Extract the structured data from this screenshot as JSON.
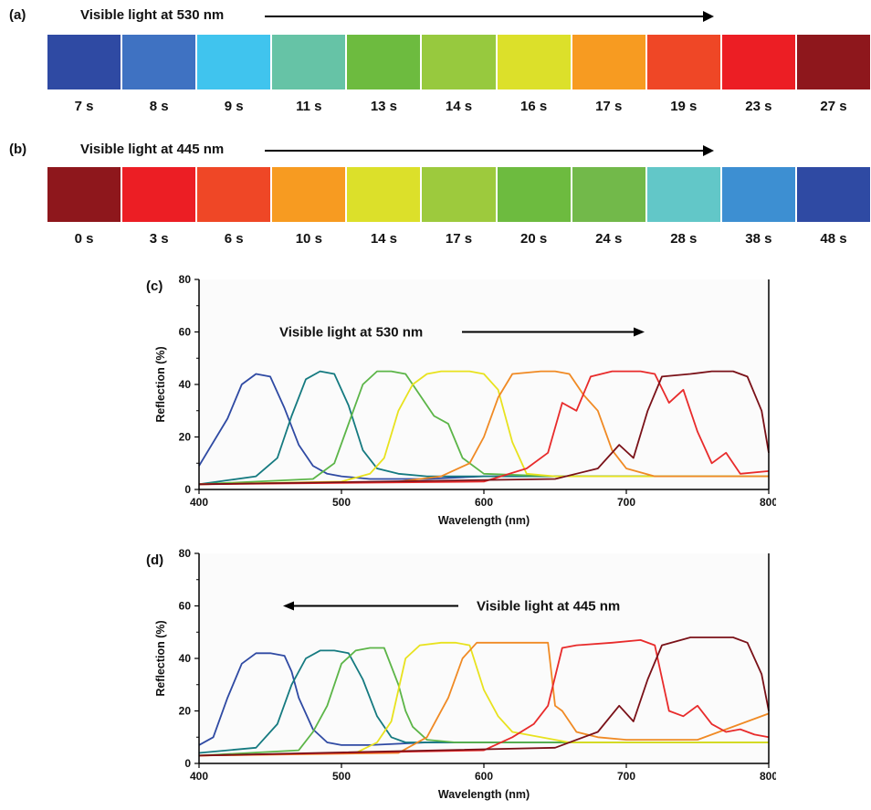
{
  "panels": {
    "a": {
      "label": "(a)",
      "title": "Visible light at 530 nm",
      "swatches": [
        "#2f4aa3",
        "#3f72c2",
        "#40c4ee",
        "#66c3a6",
        "#6dbb3f",
        "#97c93e",
        "#dce02a",
        "#f79b21",
        "#ef4726",
        "#ec1e24",
        "#8e171c"
      ],
      "times": [
        "7 s",
        "8 s",
        "9 s",
        "11 s",
        "13 s",
        "14 s",
        "16 s",
        "17 s",
        "19 s",
        "23 s",
        "27 s"
      ]
    },
    "b": {
      "label": "(b)",
      "title": "Visible light at 445 nm",
      "swatches": [
        "#8e171c",
        "#ec1e24",
        "#ef4726",
        "#f79b21",
        "#dce02a",
        "#9dca3d",
        "#6dbb3f",
        "#72b94a",
        "#62c7c8",
        "#3d8fd2",
        "#2f4aa3"
      ],
      "times": [
        "0 s",
        "3 s",
        "6 s",
        "10 s",
        "14 s",
        "17 s",
        "20 s",
        "24 s",
        "28 s",
        "38 s",
        "48 s"
      ]
    }
  },
  "chart_data": [
    {
      "panel_label": "(c)",
      "type": "line",
      "title": "",
      "annotation": "Visible light at 530 nm",
      "xlabel": "Wavelength (nm)",
      "ylabel": "Reflection (%)",
      "xlim": [
        400,
        800
      ],
      "ylim": [
        0,
        80
      ],
      "xticks": [
        400,
        500,
        600,
        700,
        800
      ],
      "yticks": [
        0,
        20,
        40,
        60,
        80
      ],
      "series": [
        {
          "color": "#2f4aa3",
          "center": 440,
          "half_width": 28,
          "peak": 43,
          "x": [
            400,
            420,
            430,
            440,
            450,
            460,
            470,
            480,
            490,
            500,
            520,
            560,
            600,
            650,
            700,
            750,
            800
          ],
          "y": [
            9,
            27,
            40,
            44,
            43,
            31,
            17,
            9,
            6,
            5,
            4,
            4,
            5,
            5,
            5,
            5,
            5
          ]
        },
        {
          "color": "#157a80",
          "center": 482,
          "half_width": 28,
          "peak": 44,
          "x": [
            400,
            440,
            455,
            465,
            475,
            485,
            495,
            505,
            515,
            525,
            540,
            560,
            600,
            650,
            700,
            750,
            800
          ],
          "y": [
            2,
            5,
            12,
            28,
            42,
            45,
            44,
            32,
            15,
            8,
            6,
            5,
            5,
            5,
            5,
            5,
            5
          ]
        },
        {
          "color": "#5cb548",
          "center": 535,
          "half_width": 30,
          "peak": 45,
          "x": [
            400,
            480,
            495,
            505,
            515,
            525,
            535,
            545,
            555,
            565,
            575,
            585,
            600,
            650,
            700,
            750,
            800
          ],
          "y": [
            2,
            4,
            10,
            25,
            40,
            45,
            45,
            44,
            36,
            28,
            25,
            12,
            6,
            5,
            5,
            5,
            5
          ]
        },
        {
          "color": "#e8e21e",
          "center": 575,
          "half_width": 30,
          "peak": 45,
          "x": [
            400,
            500,
            520,
            530,
            540,
            550,
            560,
            570,
            580,
            590,
            600,
            610,
            620,
            630,
            650,
            700,
            750,
            800
          ],
          "y": [
            2,
            3,
            6,
            12,
            30,
            40,
            44,
            45,
            45,
            45,
            44,
            38,
            18,
            6,
            5,
            5,
            5,
            5
          ]
        },
        {
          "color": "#f08a24",
          "center": 630,
          "half_width": 33,
          "peak": 45,
          "x": [
            400,
            540,
            570,
            590,
            600,
            610,
            620,
            640,
            650,
            660,
            670,
            680,
            690,
            700,
            720,
            750,
            800
          ],
          "y": [
            2,
            3,
            5,
            10,
            20,
            35,
            44,
            45,
            45,
            44,
            36,
            30,
            15,
            8,
            5,
            5,
            5
          ]
        },
        {
          "color": "#e82b2b",
          "center": 690,
          "half_width": 35,
          "peak": 45,
          "x": [
            400,
            600,
            630,
            645,
            655,
            665,
            675,
            690,
            710,
            720,
            730,
            740,
            750,
            760,
            770,
            780,
            800
          ],
          "y": [
            2,
            3,
            8,
            14,
            33,
            30,
            43,
            45,
            45,
            44,
            33,
            38,
            22,
            10,
            14,
            6,
            7
          ]
        },
        {
          "color": "#7a1118",
          "center": 760,
          "half_width": 40,
          "peak": 45,
          "x": [
            400,
            650,
            680,
            695,
            705,
            715,
            725,
            745,
            760,
            775,
            785,
            795,
            800
          ],
          "y": [
            2,
            4,
            8,
            17,
            12,
            30,
            43,
            44,
            45,
            45,
            43,
            30,
            14
          ]
        }
      ]
    },
    {
      "panel_label": "(d)",
      "type": "line",
      "title": "",
      "annotation": "Visible light at 445 nm",
      "xlabel": "Wavelength (nm)",
      "ylabel": "Reflection (%)",
      "xlim": [
        400,
        800
      ],
      "ylim": [
        0,
        80
      ],
      "xticks": [
        400,
        500,
        600,
        700,
        800
      ],
      "yticks": [
        0,
        20,
        40,
        60,
        80
      ],
      "series": [
        {
          "color": "#2f4aa3",
          "x": [
            400,
            410,
            420,
            430,
            440,
            450,
            460,
            465,
            470,
            480,
            490,
            500,
            520,
            560,
            600,
            650,
            700,
            750,
            800
          ],
          "y": [
            7,
            10,
            25,
            38,
            42,
            42,
            41,
            35,
            25,
            13,
            8,
            7,
            7,
            8,
            8,
            8,
            8,
            8,
            8
          ]
        },
        {
          "color": "#157a80",
          "x": [
            400,
            440,
            455,
            465,
            475,
            485,
            495,
            505,
            515,
            525,
            535,
            545,
            560,
            600,
            650,
            700,
            750,
            800
          ],
          "y": [
            4,
            6,
            15,
            30,
            40,
            43,
            43,
            42,
            32,
            18,
            10,
            8,
            8,
            8,
            8,
            8,
            8,
            8
          ]
        },
        {
          "color": "#5cb548",
          "x": [
            400,
            470,
            480,
            490,
            500,
            510,
            520,
            530,
            540,
            545,
            550,
            560,
            580,
            600,
            650,
            700,
            750,
            800
          ],
          "y": [
            3,
            5,
            12,
            22,
            38,
            43,
            44,
            44,
            30,
            20,
            14,
            9,
            8,
            8,
            8,
            8,
            8,
            8
          ]
        },
        {
          "color": "#e8e21e",
          "x": [
            400,
            510,
            525,
            535,
            545,
            555,
            570,
            580,
            590,
            600,
            610,
            620,
            640,
            660,
            700,
            750,
            800
          ],
          "y": [
            3,
            4,
            8,
            16,
            40,
            45,
            46,
            46,
            45,
            28,
            18,
            12,
            10,
            8,
            8,
            8,
            8
          ]
        },
        {
          "color": "#f08a24",
          "x": [
            400,
            540,
            560,
            575,
            585,
            595,
            610,
            630,
            645,
            650,
            655,
            665,
            680,
            700,
            750,
            800
          ],
          "y": [
            3,
            4,
            10,
            25,
            40,
            46,
            46,
            46,
            46,
            22,
            20,
            12,
            10,
            9,
            9,
            19
          ]
        },
        {
          "color": "#e82b2b",
          "x": [
            400,
            600,
            620,
            635,
            645,
            655,
            665,
            690,
            710,
            720,
            730,
            740,
            750,
            760,
            770,
            780,
            790,
            800
          ],
          "y": [
            3,
            5,
            10,
            15,
            22,
            44,
            45,
            46,
            47,
            45,
            20,
            18,
            22,
            15,
            12,
            13,
            11,
            10
          ]
        },
        {
          "color": "#7a1118",
          "x": [
            400,
            650,
            680,
            695,
            705,
            715,
            725,
            745,
            760,
            775,
            785,
            795,
            800
          ],
          "y": [
            3,
            6,
            12,
            22,
            16,
            32,
            45,
            48,
            48,
            48,
            46,
            34,
            20
          ]
        }
      ]
    }
  ]
}
